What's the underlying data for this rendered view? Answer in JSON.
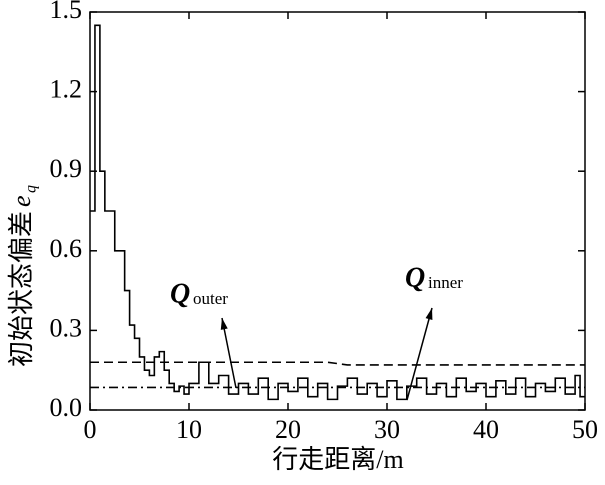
{
  "chart_data": {
    "type": "line",
    "xlabel": "行走距离/m",
    "ylabel": "初始状态偏差",
    "ylabel_symbol": "e",
    "ylabel_subscript": "q",
    "xlim": [
      0,
      50
    ],
    "ylim": [
      0,
      1.5
    ],
    "xticks": [
      0,
      10,
      20,
      30,
      40,
      50
    ],
    "yticks": [
      {
        "value": 0,
        "label": "0.0"
      },
      0.3,
      0.6,
      0.9,
      1.2,
      1.5
    ],
    "annotations": [
      {
        "text": "Q",
        "subscript": "outer"
      },
      {
        "text": "Q",
        "subscript": "inner"
      }
    ],
    "series": [
      {
        "style": "step",
        "color": "#000000",
        "x": [
          0,
          0.5,
          1,
          1.5,
          2,
          2.5,
          3,
          3.5,
          4,
          4.5,
          5,
          5.5,
          6,
          6.5,
          7,
          7.5,
          8,
          8.5,
          9,
          9.5,
          10,
          11,
          12,
          13,
          14,
          15,
          16,
          17,
          18,
          19,
          20,
          21,
          22,
          23,
          24,
          25,
          26,
          27,
          28,
          29,
          30,
          31,
          32,
          33,
          34,
          35,
          36,
          37,
          38,
          39,
          40,
          41,
          42,
          43,
          44,
          45,
          46,
          47,
          48,
          49,
          49.5
        ],
        "values": [
          0.75,
          1.45,
          0.9,
          0.75,
          0.75,
          0.6,
          0.6,
          0.45,
          0.32,
          0.27,
          0.2,
          0.15,
          0.13,
          0.2,
          0.22,
          0.15,
          0.1,
          0.07,
          0.09,
          0.06,
          0.1,
          0.18,
          0.1,
          0.13,
          0.06,
          0.1,
          0.06,
          0.12,
          0.04,
          0.1,
          0.07,
          0.12,
          0.05,
          0.1,
          0.04,
          0.09,
          0.12,
          0.06,
          0.1,
          0.05,
          0.11,
          0.04,
          0.09,
          0.12,
          0.06,
          0.1,
          0.05,
          0.12,
          0.07,
          0.1,
          0.05,
          0.11,
          0.06,
          0.12,
          0.05,
          0.1,
          0.07,
          0.12,
          0.06,
          0.13,
          0.05
        ]
      },
      {
        "style": "dashed",
        "color": "#000000",
        "x": [
          0,
          24,
          26,
          50
        ],
        "values": [
          0.18,
          0.18,
          0.17,
          0.17
        ]
      },
      {
        "style": "dashdot",
        "color": "#000000",
        "x": [
          0,
          50
        ],
        "values": [
          0.085,
          0.085
        ]
      }
    ]
  }
}
